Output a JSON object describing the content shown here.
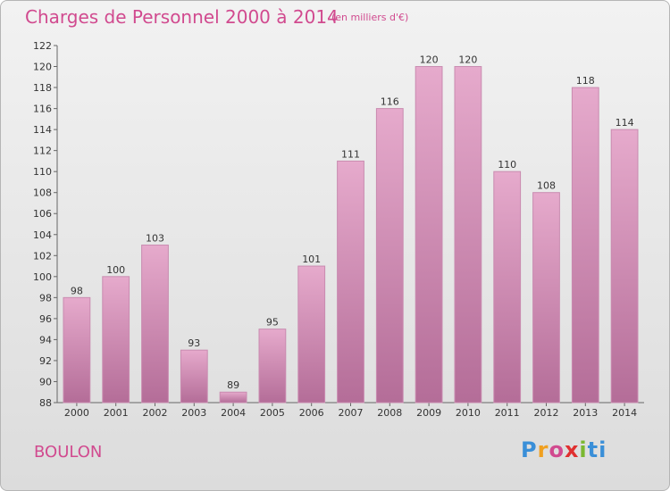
{
  "header": {
    "title": "Charges de Personnel 2000 à 2014",
    "subtitle": "(en milliers d'€)"
  },
  "footer": {
    "location": "BOULON",
    "logo_text": "Proxiti"
  },
  "colors": {
    "bar_fill": "#d98fba",
    "bar_light": "#e6aacc",
    "bar_dark": "#c57aa6",
    "title": "#d14a8f"
  },
  "chart_data": {
    "type": "bar",
    "title": "Charges de Personnel 2000 à 2014",
    "subtitle": "(en milliers d'€)",
    "xlabel": "",
    "ylabel": "",
    "categories": [
      "2000",
      "2001",
      "2002",
      "2003",
      "2004",
      "2005",
      "2006",
      "2007",
      "2008",
      "2009",
      "2010",
      "2011",
      "2012",
      "2013",
      "2014"
    ],
    "values": [
      98,
      100,
      103,
      93,
      89,
      95,
      101,
      111,
      116,
      120,
      120,
      110,
      108,
      118,
      114
    ],
    "ylim": [
      88,
      122
    ],
    "yticks": [
      88,
      90,
      92,
      94,
      96,
      98,
      100,
      102,
      104,
      106,
      108,
      110,
      112,
      114,
      116,
      118,
      120,
      122
    ],
    "grid": false,
    "data_labels": true
  }
}
